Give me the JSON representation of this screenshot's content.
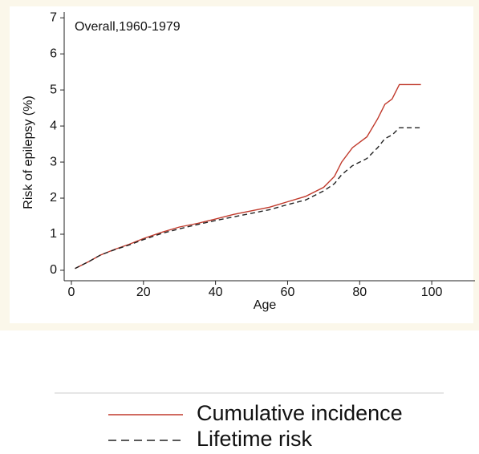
{
  "chart_data": {
    "type": "line",
    "title": "Overall,1960-1979",
    "x_label": "Age",
    "y_label": "Risk of epilepsy (%)",
    "x": [
      1,
      5,
      8,
      12,
      16,
      20,
      25,
      30,
      35,
      40,
      45,
      50,
      55,
      60,
      65,
      70,
      73,
      75,
      78,
      82,
      85,
      87,
      89,
      91,
      97
    ],
    "series": [
      {
        "name": "Cumulative incidence",
        "color": "#c0392b",
        "dash": false,
        "values": [
          0.05,
          0.25,
          0.42,
          0.58,
          0.72,
          0.88,
          1.05,
          1.2,
          1.3,
          1.42,
          1.55,
          1.65,
          1.75,
          1.9,
          2.05,
          2.3,
          2.6,
          3.0,
          3.4,
          3.7,
          4.2,
          4.6,
          4.75,
          5.15,
          5.15
        ]
      },
      {
        "name": "Lifetime risk",
        "color": "#222222",
        "dash": true,
        "values": [
          0.05,
          0.25,
          0.42,
          0.57,
          0.7,
          0.85,
          1.02,
          1.15,
          1.27,
          1.38,
          1.48,
          1.58,
          1.68,
          1.82,
          1.95,
          2.2,
          2.4,
          2.65,
          2.9,
          3.1,
          3.4,
          3.65,
          3.75,
          3.95,
          3.95
        ]
      }
    ],
    "xlim": [
      -2,
      112
    ],
    "ylim": [
      -0.29,
      7.16
    ],
    "xticks": [
      0,
      20,
      40,
      60,
      80,
      100
    ],
    "yticks": [
      0,
      1,
      2,
      3,
      4,
      5,
      6,
      7
    ]
  }
}
